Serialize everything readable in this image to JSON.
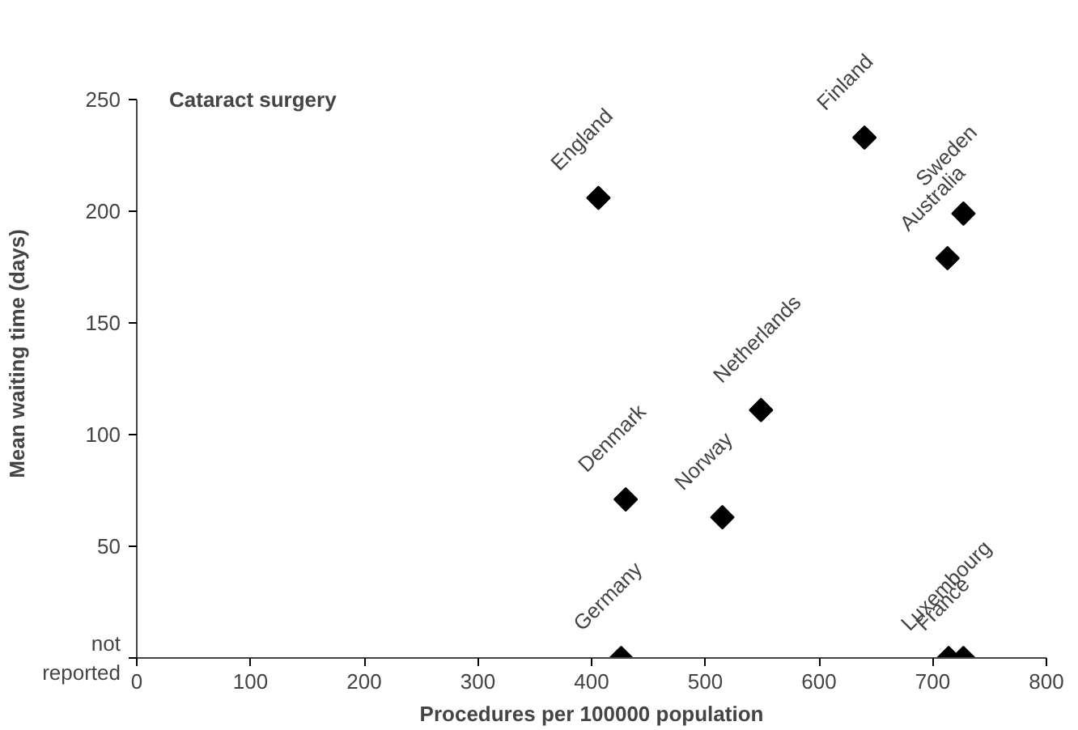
{
  "chart_data": {
    "type": "scatter",
    "title": "Cataract surgery",
    "xlabel": "Procedures per 100000 population",
    "ylabel": "Mean waiting time (days)",
    "x": [
      406,
      640,
      727,
      713,
      549,
      430,
      515,
      426,
      714,
      727
    ],
    "series": [
      {
        "color": "#000000",
        "values": [
          206,
          233,
          199,
          179,
          111,
          71,
          63,
          0,
          0,
          0
        ]
      }
    ],
    "annotations": [
      {
        "text": "England",
        "x": 406,
        "y": 206
      },
      {
        "text": "Finland",
        "x": 640,
        "y": 233
      },
      {
        "text": "Sweden",
        "x": 727,
        "y": 199
      },
      {
        "text": "Australia",
        "x": 713,
        "y": 179
      },
      {
        "text": "Netherlands",
        "x": 549,
        "y": 111
      },
      {
        "text": "Denmark",
        "x": 430,
        "y": 71
      },
      {
        "text": "Norway",
        "x": 515,
        "y": 63
      },
      {
        "text": "Germany",
        "x": 426,
        "y": 0
      },
      {
        "text": "Luxembourg",
        "x": 714,
        "y": 0
      },
      {
        "text": "France",
        "x": 727,
        "y": 0
      }
    ],
    "marker": "diamond",
    "grid": false,
    "xlim": [
      0,
      800
    ],
    "ylim": [
      0,
      250
    ],
    "xticks": [
      0,
      100,
      200,
      300,
      400,
      500,
      600,
      700,
      800
    ],
    "yticks": [
      {
        "value": 0,
        "label": "not\nreported"
      },
      50,
      100,
      150,
      200,
      250
    ]
  }
}
